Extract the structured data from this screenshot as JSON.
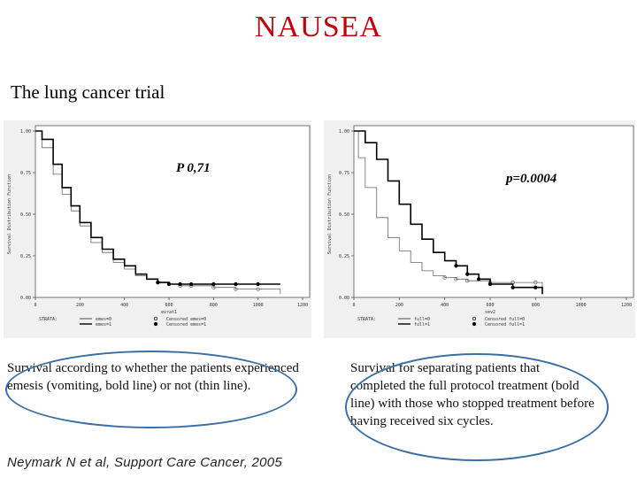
{
  "slide": {
    "title": "NAUSEA",
    "subtitle": "The lung cancer trial",
    "citation": "Neymark N et al, Support Care Cancer, 2005",
    "captions": {
      "left": "Survival according to whether the patients experienced emesis (vomiting, bold line) or not (thin line).",
      "right": "Survival for separating patients that completed the full protocol treatment (bold line) with those who stopped treatment before having  received six cycles."
    },
    "colors": {
      "title": "#c0000a",
      "highlight_oval": "#3a6ea5"
    }
  },
  "chart_data": [
    {
      "type": "line",
      "annotation": "P 0,71",
      "ylabel": "Survival Distribution Function",
      "xlabel": "evrat1",
      "xlim": [
        0,
        1200
      ],
      "ylim": [
        0,
        1
      ],
      "xticks": [
        "0",
        "200",
        "400",
        "600",
        "800",
        "1000",
        "1200"
      ],
      "yticks": [
        "0.00",
        "0.25",
        "0.50",
        "0.75",
        "1.00"
      ],
      "legend": {
        "strata_label": "STRATA:",
        "entries": [
          "emes=0",
          "emes=1",
          "Censored emes=0",
          "Censored emes=1"
        ]
      },
      "grid": false,
      "series": [
        {
          "name": "emes=0",
          "style": "thin",
          "x": [
            0,
            30,
            80,
            120,
            160,
            200,
            250,
            300,
            350,
            400,
            450,
            500,
            550,
            600,
            650,
            700,
            800,
            900,
            1000,
            1100
          ],
          "y": [
            1.0,
            0.9,
            0.74,
            0.62,
            0.52,
            0.43,
            0.33,
            0.27,
            0.21,
            0.17,
            0.13,
            0.11,
            0.09,
            0.08,
            0.07,
            0.07,
            0.06,
            0.05,
            0.05,
            0.02
          ]
        },
        {
          "name": "emes=1",
          "style": "bold",
          "x": [
            0,
            30,
            80,
            120,
            160,
            200,
            250,
            300,
            350,
            400,
            450,
            500,
            550,
            600,
            650,
            700,
            800,
            900,
            1000,
            1100
          ],
          "y": [
            1.0,
            0.95,
            0.8,
            0.66,
            0.55,
            0.45,
            0.36,
            0.29,
            0.23,
            0.19,
            0.14,
            0.11,
            0.09,
            0.08,
            0.08,
            0.08,
            0.08,
            0.08,
            0.08,
            0.08
          ]
        }
      ]
    },
    {
      "type": "line",
      "annotation": "p=0.0004",
      "ylabel": "Survival Distribution Function",
      "xlabel": "sev2",
      "xlim": [
        0,
        1200
      ],
      "ylim": [
        0,
        1
      ],
      "xticks": [
        "0",
        "200",
        "400",
        "600",
        "800",
        "1000",
        "1200"
      ],
      "yticks": [
        "0.00",
        "0.25",
        "0.50",
        "0.75",
        "1.00"
      ],
      "legend": {
        "strata_label": "STRATA:",
        "entries": [
          "full=0",
          "full=1",
          "Censored full=0",
          "Censored full=1"
        ]
      },
      "grid": false,
      "series": [
        {
          "name": "full=0",
          "style": "thin",
          "x": [
            0,
            20,
            50,
            100,
            150,
            200,
            250,
            300,
            350,
            400,
            450,
            500,
            600,
            700,
            800,
            830
          ],
          "y": [
            1.0,
            0.84,
            0.66,
            0.48,
            0.36,
            0.28,
            0.21,
            0.16,
            0.13,
            0.12,
            0.11,
            0.1,
            0.09,
            0.09,
            0.09,
            0.02
          ]
        },
        {
          "name": "full=1",
          "style": "bold",
          "x": [
            0,
            50,
            100,
            150,
            200,
            250,
            300,
            350,
            400,
            450,
            500,
            550,
            600,
            700,
            800,
            830
          ],
          "y": [
            1.0,
            0.93,
            0.83,
            0.7,
            0.56,
            0.44,
            0.35,
            0.27,
            0.22,
            0.19,
            0.14,
            0.11,
            0.08,
            0.06,
            0.06,
            0.02
          ]
        }
      ]
    }
  ]
}
